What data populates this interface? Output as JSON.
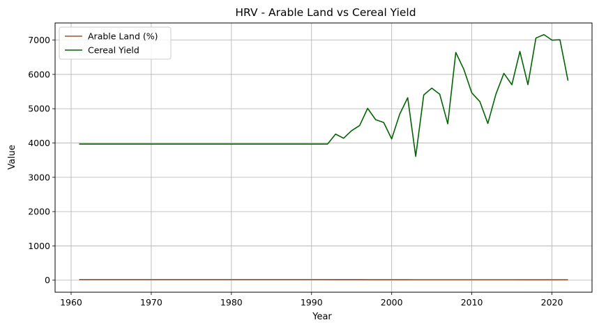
{
  "chart_data": {
    "type": "line",
    "title": "HRV - Arable Land vs Cereal Yield",
    "xlabel": "Year",
    "ylabel": "Value",
    "xlim": [
      1958,
      2025
    ],
    "ylim": [
      -350,
      7500
    ],
    "xticks": [
      1960,
      1970,
      1980,
      1990,
      2000,
      2010,
      2020
    ],
    "yticks": [
      0,
      1000,
      2000,
      3000,
      4000,
      5000,
      6000,
      7000
    ],
    "grid": true,
    "legend_position": "top-left",
    "x": [
      1961,
      1962,
      1963,
      1964,
      1965,
      1966,
      1967,
      1968,
      1969,
      1970,
      1971,
      1972,
      1973,
      1974,
      1975,
      1976,
      1977,
      1978,
      1979,
      1980,
      1981,
      1982,
      1983,
      1984,
      1985,
      1986,
      1987,
      1988,
      1989,
      1990,
      1991,
      1992,
      1993,
      1994,
      1995,
      1996,
      1997,
      1998,
      1999,
      2000,
      2001,
      2002,
      2003,
      2004,
      2005,
      2006,
      2007,
      2008,
      2009,
      2010,
      2011,
      2012,
      2013,
      2014,
      2015,
      2016,
      2017,
      2018,
      2019,
      2020,
      2021,
      2022
    ],
    "series": [
      {
        "name": "Arable Land (%)",
        "color": "#a0522d",
        "values": [
          20,
          20,
          20,
          20,
          20,
          20,
          20,
          20,
          20,
          20,
          20,
          20,
          20,
          20,
          20,
          20,
          20,
          20,
          20,
          20,
          20,
          20,
          20,
          20,
          20,
          20,
          20,
          20,
          20,
          20,
          20,
          20,
          19,
          18,
          18,
          18,
          17,
          17,
          17,
          17,
          16,
          16,
          15,
          15,
          15,
          15,
          15,
          15,
          15,
          15,
          15,
          15,
          15,
          15,
          15,
          14,
          14,
          14,
          14,
          14,
          14,
          14
        ]
      },
      {
        "name": "Cereal Yield",
        "color": "#006400",
        "values": [
          3970,
          3970,
          3970,
          3970,
          3970,
          3970,
          3970,
          3970,
          3970,
          3970,
          3970,
          3970,
          3970,
          3970,
          3970,
          3970,
          3970,
          3970,
          3970,
          3970,
          3970,
          3970,
          3970,
          3970,
          3970,
          3970,
          3970,
          3970,
          3970,
          3970,
          3970,
          3970,
          4260,
          4140,
          4360,
          4510,
          5010,
          4680,
          4600,
          4120,
          4840,
          5320,
          3610,
          5400,
          5600,
          5420,
          4560,
          6640,
          6150,
          5460,
          5210,
          4570,
          5420,
          6030,
          5700,
          6670,
          5700,
          7060,
          7160,
          7000,
          7010,
          5820
        ]
      }
    ]
  }
}
